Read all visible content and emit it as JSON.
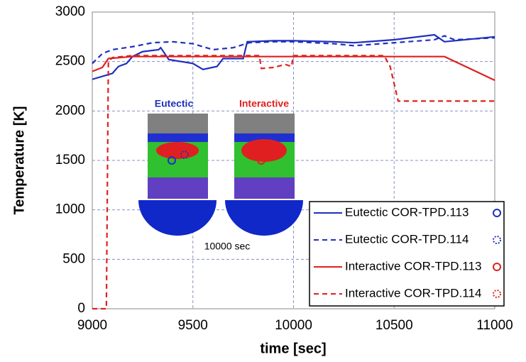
{
  "chart_data": {
    "type": "line",
    "x_label": "time [sec]",
    "y_label": "Temperature [K]",
    "xlim": [
      9000,
      11000
    ],
    "xticks": [
      9000,
      9500,
      10000,
      10500,
      11000
    ],
    "ylim": [
      0,
      3000
    ],
    "yticks": [
      0,
      500,
      1000,
      1500,
      2000,
      2500,
      3000
    ],
    "grid": true,
    "legend": "lower right",
    "annotations": [
      "Eutectic",
      "Interactive",
      "10000 sec"
    ],
    "series": [
      {
        "name": "Eutectic COR-TPD.113",
        "color": "#1f2fbf",
        "style": "solid",
        "x": [
          9000,
          9100,
          9130,
          9170,
          9200,
          9250,
          9330,
          9340,
          9380,
          9500,
          9550,
          9620,
          9650,
          9750,
          9770,
          9900,
          10000,
          10200,
          10300,
          10500,
          10700,
          10750,
          11000
        ],
        "values": [
          2320,
          2380,
          2450,
          2480,
          2550,
          2600,
          2620,
          2640,
          2520,
          2480,
          2420,
          2450,
          2530,
          2530,
          2700,
          2710,
          2710,
          2700,
          2690,
          2720,
          2770,
          2700,
          2750
        ]
      },
      {
        "name": "Eutectic COR-TPD.114",
        "color": "#1f2fbf",
        "style": "dashed",
        "x": [
          9000,
          9050,
          9100,
          9200,
          9300,
          9400,
          9500,
          9600,
          9700,
          9780,
          9900,
          10000,
          10200,
          10300,
          10500,
          10700,
          10750,
          10800,
          11000
        ],
        "values": [
          2480,
          2580,
          2620,
          2650,
          2690,
          2700,
          2680,
          2620,
          2640,
          2690,
          2700,
          2700,
          2680,
          2660,
          2690,
          2720,
          2760,
          2720,
          2740
        ]
      },
      {
        "name": "Interactive COR-TPD.113",
        "color": "#e02020",
        "style": "solid",
        "x": [
          9000,
          9050,
          9080,
          9200,
          10750,
          11000
        ],
        "values": [
          2400,
          2440,
          2530,
          2550,
          2550,
          2310
        ]
      },
      {
        "name": "Interactive COR-TPD.114",
        "color": "#e02020",
        "style": "dashed",
        "x": [
          9000,
          9070,
          9080,
          9100,
          9200,
          9830,
          9840,
          9900,
          9960,
          9990,
          10000,
          10450,
          10480,
          10520,
          11000
        ],
        "values": [
          0,
          0,
          2500,
          2540,
          2560,
          2560,
          2430,
          2440,
          2470,
          2450,
          2560,
          2560,
          2450,
          2100,
          2100
        ]
      }
    ]
  }
}
